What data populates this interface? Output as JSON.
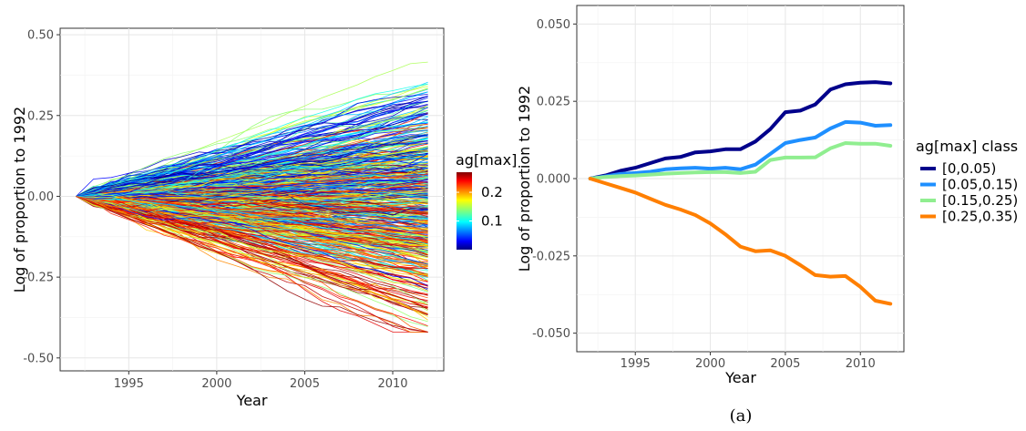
{
  "chart_data": [
    {
      "type": "line",
      "title": "",
      "xlabel": "Year",
      "ylabel": "Log of proportion to 1992",
      "xlim": [
        1991.1,
        2012.9
      ],
      "ylim": [
        -0.54,
        0.52
      ],
      "x_ticks": [
        1995,
        2000,
        2005,
        2010
      ],
      "x_tick_labels": [
        "1995",
        "2000",
        "2005",
        "2010"
      ],
      "y_ticks": [
        -0.5,
        -0.25,
        0,
        0.25,
        0.5
      ],
      "y_tick_labels": [
        "-0.50",
        "-0.25",
        "0.00",
        "0.25",
        "0.50"
      ],
      "grid": true,
      "legend": {
        "title": "ag[max]",
        "type": "colorbar",
        "position": "right",
        "range": [
          0.0,
          0.27
        ],
        "ticks": [
          0.1,
          0.2
        ],
        "tick_labels": [
          "0.1",
          "0.2"
        ],
        "colormap": "jet"
      },
      "series_description_x": [
        1992,
        2012
      ]
    },
    {
      "type": "line",
      "title": "",
      "xlabel": "Year",
      "ylabel": "Log of proportion to 1992",
      "xlim": [
        1991.1,
        2012.9
      ],
      "ylim": [
        -0.056,
        0.056
      ],
      "x_ticks": [
        1995,
        2000,
        2005,
        2010
      ],
      "x_tick_labels": [
        "1995",
        "2000",
        "2005",
        "2010"
      ],
      "y_ticks": [
        -0.05,
        -0.025,
        0,
        0.025,
        0.05
      ],
      "y_tick_labels": [
        "-0.050",
        "-0.025",
        "0.000",
        "0.025",
        "0.050"
      ],
      "grid": true,
      "legend": {
        "title": "ag[max] class",
        "position": "right"
      },
      "x": [
        1992,
        1993,
        1994,
        1995,
        1996,
        1997,
        1998,
        1999,
        2000,
        2001,
        2002,
        2003,
        2004,
        2005,
        2006,
        2007,
        2008,
        2009,
        2010,
        2011,
        2012
      ],
      "series": [
        {
          "name": "[0,0.05)",
          "color": "#00008b",
          "values": [
            0,
            0.001,
            0.0025,
            0.0035,
            0.005,
            0.0065,
            0.007,
            0.0085,
            0.0088,
            0.0095,
            0.0095,
            0.012,
            0.016,
            0.0215,
            0.022,
            0.024,
            0.0288,
            0.0305,
            0.031,
            0.0312,
            0.0308
          ]
        },
        {
          "name": "[0.05,0.15)",
          "color": "#1e8fff",
          "values": [
            0,
            0.0007,
            0.0015,
            0.0018,
            0.0022,
            0.003,
            0.0033,
            0.0035,
            0.0032,
            0.0035,
            0.003,
            0.0045,
            0.008,
            0.0115,
            0.0125,
            0.0133,
            0.0162,
            0.0183,
            0.0181,
            0.0171,
            0.0173
          ]
        },
        {
          "name": "[0.15,0.25)",
          "color": "#90ee90",
          "values": [
            0,
            0.0005,
            0.0008,
            0.001,
            0.0013,
            0.0016,
            0.0018,
            0.002,
            0.0021,
            0.0021,
            0.0018,
            0.0022,
            0.006,
            0.0068,
            0.0068,
            0.0069,
            0.0098,
            0.0115,
            0.0113,
            0.0113,
            0.0106
          ]
        },
        {
          "name": "[0.25,0.35)",
          "color": "#ff7f00",
          "values": [
            0,
            -0.0015,
            -0.003,
            -0.0045,
            -0.0065,
            -0.0085,
            -0.01,
            -0.0118,
            -0.0145,
            -0.018,
            -0.022,
            -0.0235,
            -0.0232,
            -0.025,
            -0.028,
            -0.0312,
            -0.0317,
            -0.0315,
            -0.035,
            -0.0395,
            -0.0405
          ]
        }
      ]
    }
  ],
  "caption": "(a)"
}
